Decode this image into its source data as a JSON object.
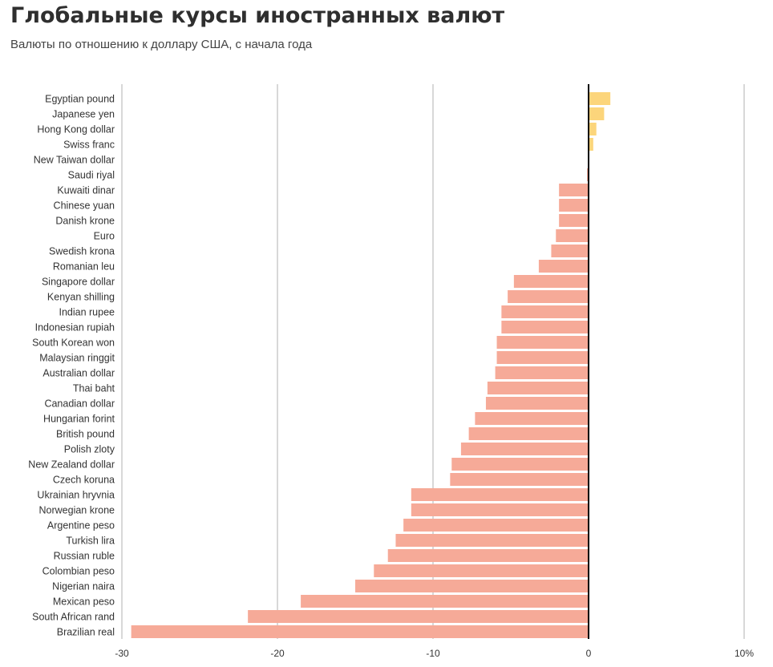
{
  "header": {
    "title": "Глобальные курсы иностранных валют",
    "subtitle": "Валюты по отношению к доллару США, с начала года"
  },
  "colors": {
    "positive": "#fcd57b",
    "negative": "#f6aa98",
    "gridline": "#cccccc",
    "zero_line": "#000000"
  },
  "chart_data": {
    "type": "bar",
    "orientation": "horizontal",
    "title": "Глобальные курсы иностранных валют",
    "subtitle": "Валюты по отношению к доллару США, с начала года",
    "xlabel": "",
    "ylabel": "",
    "xlim": [
      -30,
      10
    ],
    "xticks": [
      -30,
      -20,
      -10,
      0,
      10
    ],
    "xtick_labels": [
      "-30",
      "-20",
      "-10",
      "0",
      "10%"
    ],
    "grid": true,
    "legend": "none",
    "categories": [
      "Egyptian pound",
      "Japanese yen",
      "Hong Kong dollar",
      "Swiss franc",
      "New Taiwan dollar",
      "Saudi riyal",
      "Kuwaiti dinar",
      "Chinese yuan",
      "Danish krone",
      "Euro",
      "Swedish krona",
      "Romanian leu",
      "Singapore dollar",
      "Kenyan shilling",
      "Indian rupee",
      "Indonesian rupiah",
      "South Korean won",
      "Malaysian ringgit",
      "Australian dollar",
      "Thai baht",
      "Canadian dollar",
      "Hungarian forint",
      "British pound",
      "Polish zloty",
      "New Zealand dollar",
      "Czech koruna",
      "Ukrainian hryvnia",
      "Norwegian krone",
      "Argentine peso",
      "Turkish lira",
      "Russian ruble",
      "Colombian peso",
      "Nigerian naira",
      "Mexican peso",
      "South African rand",
      "Brazilian real"
    ],
    "values": [
      1.4,
      1.0,
      0.5,
      0.3,
      0.0,
      -0.1,
      -1.9,
      -1.9,
      -1.9,
      -2.1,
      -2.4,
      -3.2,
      -4.8,
      -5.2,
      -5.6,
      -5.6,
      -5.9,
      -5.9,
      -6.0,
      -6.5,
      -6.6,
      -7.3,
      -7.7,
      -8.2,
      -8.8,
      -8.9,
      -11.4,
      -11.4,
      -11.9,
      -12.4,
      -12.9,
      -13.8,
      -15.0,
      -18.5,
      -21.9,
      -29.4
    ]
  }
}
